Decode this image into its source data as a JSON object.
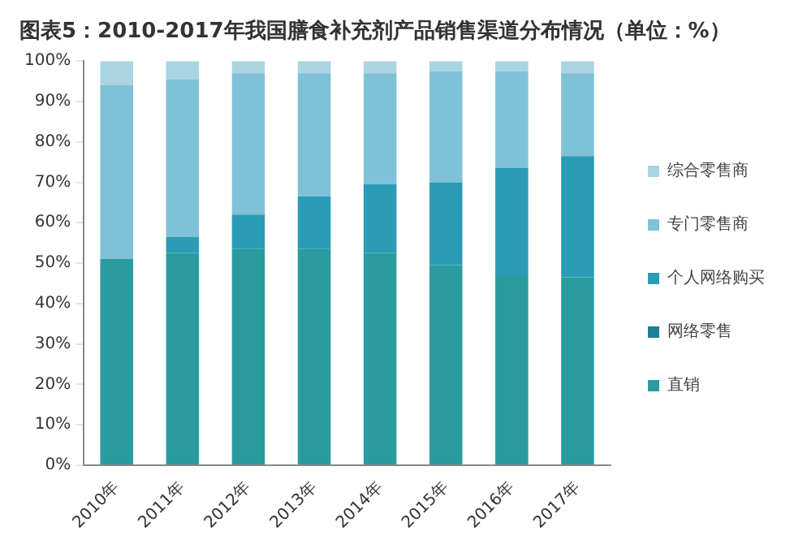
{
  "chart_data": {
    "type": "bar",
    "title": "图表5：2010-2017年我国膳食补充剂产品销售渠道分布情况（单位：%）",
    "categories": [
      "2010年",
      "2011年",
      "2012年",
      "2013年",
      "2014年",
      "2015年",
      "2016年",
      "2017年"
    ],
    "stacked": true,
    "series": [
      {
        "name": "直销",
        "color": "#2a9ca0",
        "values": [
          51,
          52.5,
          53.5,
          53.5,
          52.5,
          49.5,
          47,
          46.5
        ]
      },
      {
        "name": "网络零售",
        "color": "#1d7f9a",
        "values": [
          0,
          0,
          0,
          0,
          0,
          0,
          0,
          0
        ]
      },
      {
        "name": "个人网络购买",
        "color": "#2a9cb5",
        "values": [
          0,
          4,
          8.5,
          13,
          17,
          20.5,
          26.5,
          30
        ]
      },
      {
        "name": "专门零售商",
        "color": "#7fc1d6",
        "values": [
          43,
          39,
          35,
          30.5,
          27.5,
          27.5,
          24,
          20.5
        ]
      },
      {
        "name": "综合零售商",
        "color": "#a9d5e2",
        "values": [
          6,
          4.5,
          3,
          3,
          3,
          2.5,
          2.5,
          3
        ]
      }
    ],
    "ylim": [
      0,
      100
    ],
    "yticks": [
      {
        "value": 0,
        "label": "0%"
      },
      {
        "value": 10,
        "label": "10%"
      },
      {
        "value": 20,
        "label": "20%"
      },
      {
        "value": 30,
        "label": "30%"
      },
      {
        "value": 40,
        "label": "40%"
      },
      {
        "value": 50,
        "label": "50%"
      },
      {
        "value": 60,
        "label": "60%"
      },
      {
        "value": 70,
        "label": "70%"
      },
      {
        "value": 80,
        "label": "80%"
      },
      {
        "value": 90,
        "label": "90%"
      },
      {
        "value": 100,
        "label": "100%"
      }
    ],
    "grid": false,
    "legend": "right"
  }
}
